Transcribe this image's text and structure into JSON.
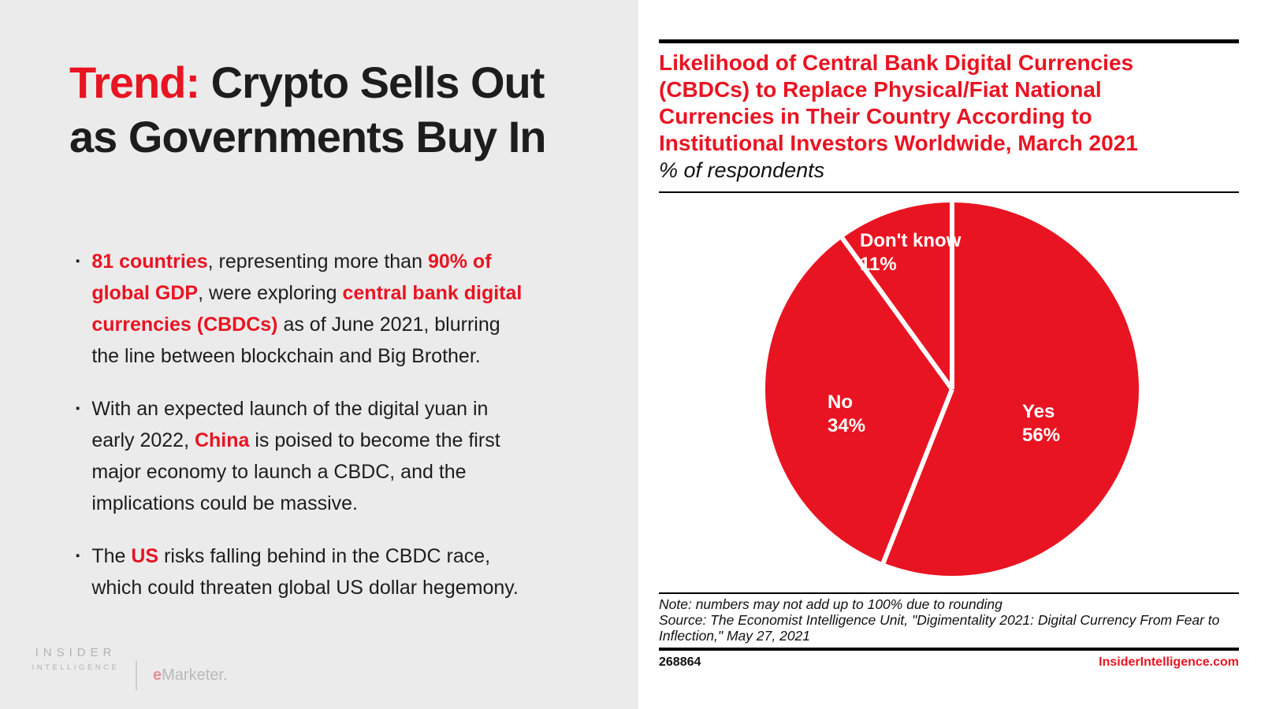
{
  "colors": {
    "accent_red": "#e91422",
    "panel_gray": "#ebebeb",
    "text_black": "#1d1d1d",
    "pie_label_white": "#ffffff",
    "logo_gray": "#b2b2b2"
  },
  "slide": {
    "title": {
      "highlight": "Trend:",
      "line1_rest": " Crypto Sells Out",
      "line2": "as Governments Buy In"
    },
    "bullets": [
      {
        "lines": [
          [
            {
              "t": "81 countries",
              "s": "rb"
            },
            {
              "t": ", representing more than ",
              "s": "n"
            },
            {
              "t": "90% of",
              "s": "rb"
            }
          ],
          [
            {
              "t": "global GDP",
              "s": "rb"
            },
            {
              "t": ", were exploring ",
              "s": "n"
            },
            {
              "t": "central bank digital",
              "s": "rb"
            }
          ],
          [
            {
              "t": "currencies (CBDCs)",
              "s": "rb"
            },
            {
              "t": " as of June 2021, blurring",
              "s": "n"
            }
          ],
          [
            {
              "t": "the line between blockchain and Big Brother.",
              "s": "n"
            }
          ]
        ]
      },
      {
        "lines": [
          [
            {
              "t": "With an expected launch of the digital yuan in",
              "s": "n"
            }
          ],
          [
            {
              "t": "early 2022, ",
              "s": "n"
            },
            {
              "t": "China",
              "s": "rb"
            },
            {
              "t": " is poised to become the first",
              "s": "n"
            }
          ],
          [
            {
              "t": "major economy to launch a CBDC, and the",
              "s": "n"
            }
          ],
          [
            {
              "t": "implications could be massive.",
              "s": "n"
            }
          ]
        ]
      },
      {
        "lines": [
          [
            {
              "t": "The ",
              "s": "n"
            },
            {
              "t": "US",
              "s": "rb"
            },
            {
              "t": " risks falling behind in the CBDC race,",
              "s": "n"
            }
          ],
          [
            {
              "t": "which could threaten global US dollar hegemony.",
              "s": "n"
            }
          ]
        ]
      }
    ],
    "logos": {
      "insider_line1": "INSIDER",
      "insider_line2": "INTELLIGENCE",
      "emarketer_e": "e",
      "emarketer_rest": "Marketer."
    }
  },
  "chart": {
    "title_lines": [
      "Likelihood of Central Bank Digital Currencies",
      "(CBDCs) to Replace Physical/Fiat National",
      "Currencies in Their Country According to",
      "Institutional Investors Worldwide, March 2021"
    ],
    "subtitle": "% of respondents",
    "note": "Note: numbers may not add up to 100% due to rounding",
    "source": "Source: The Economist Intelligence Unit, \"Digimentality 2021: Digital Currency From Fear to Inflection,\" May 27, 2021",
    "footer_id": "268864",
    "footer_site": "InsiderIntelligence.com"
  },
  "chart_data": {
    "type": "pie",
    "title": "Likelihood of Central Bank Digital Currencies (CBDCs) to Replace Physical/Fiat National Currencies in Their Country According to Institutional Investors Worldwide, March 2021",
    "subtitle": "% of respondents",
    "labels": [
      "Yes",
      "No",
      "Don't know"
    ],
    "values": [
      56,
      34,
      11
    ],
    "value_labels": [
      "56%",
      "34%",
      "11%"
    ],
    "slice_color": "#e91422",
    "divider_color": "#ffffff",
    "start_angle_deg": 0,
    "direction": "clockwise",
    "legend_position": "labels-inside-slices"
  }
}
